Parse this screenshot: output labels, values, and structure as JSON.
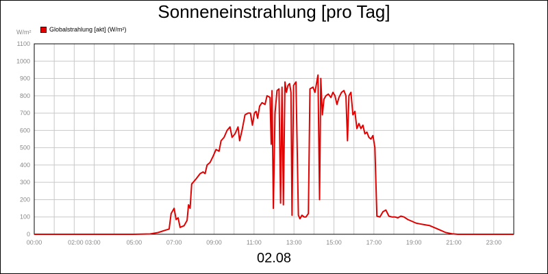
{
  "chart_data": {
    "type": "line",
    "title": "Sonneneinstrahlung [pro Tag]",
    "unit_label": "W/m²",
    "xlabel": "02.08",
    "ylim": [
      0,
      1100
    ],
    "yticks": [
      0,
      100,
      200,
      300,
      400,
      500,
      600,
      700,
      800,
      900,
      1000,
      1100
    ],
    "xlim": [
      0,
      24
    ],
    "xticks": [
      {
        "pos": 0,
        "label": "00:00"
      },
      {
        "pos": 2.5,
        "label": "02:00 03:00"
      },
      {
        "pos": 5,
        "label": "05:00"
      },
      {
        "pos": 7,
        "label": "07:00"
      },
      {
        "pos": 9,
        "label": "09:00"
      },
      {
        "pos": 11,
        "label": "11:00"
      },
      {
        "pos": 13,
        "label": "13:00"
      },
      {
        "pos": 15,
        "label": "15:00"
      },
      {
        "pos": 17,
        "label": "17:00"
      },
      {
        "pos": 19,
        "label": "19:00"
      },
      {
        "pos": 21,
        "label": "21:00"
      },
      {
        "pos": 23,
        "label": "23:00"
      }
    ],
    "grid": true,
    "legend_position": "top-left",
    "colors": {
      "series": "#e00000",
      "grid": "#c8c8c8",
      "tick_text": "#888888"
    },
    "series": [
      {
        "name": "Globalstrahlung [akt] (W/m²)",
        "points": [
          [
            0,
            0
          ],
          [
            5.0,
            0
          ],
          [
            5.8,
            2
          ],
          [
            6.2,
            10
          ],
          [
            6.6,
            25
          ],
          [
            6.75,
            30
          ],
          [
            6.85,
            120
          ],
          [
            7.0,
            150
          ],
          [
            7.1,
            85
          ],
          [
            7.2,
            95
          ],
          [
            7.3,
            40
          ],
          [
            7.5,
            50
          ],
          [
            7.65,
            80
          ],
          [
            7.72,
            170
          ],
          [
            7.8,
            150
          ],
          [
            7.88,
            290
          ],
          [
            8.1,
            320
          ],
          [
            8.3,
            350
          ],
          [
            8.45,
            360
          ],
          [
            8.55,
            350
          ],
          [
            8.65,
            400
          ],
          [
            8.8,
            415
          ],
          [
            8.95,
            450
          ],
          [
            9.1,
            490
          ],
          [
            9.25,
            480
          ],
          [
            9.35,
            540
          ],
          [
            9.5,
            560
          ],
          [
            9.65,
            600
          ],
          [
            9.8,
            620
          ],
          [
            9.9,
            560
          ],
          [
            10.05,
            580
          ],
          [
            10.2,
            620
          ],
          [
            10.28,
            540
          ],
          [
            10.4,
            600
          ],
          [
            10.55,
            690
          ],
          [
            10.7,
            700
          ],
          [
            10.82,
            700
          ],
          [
            10.92,
            630
          ],
          [
            11.02,
            700
          ],
          [
            11.1,
            710
          ],
          [
            11.18,
            670
          ],
          [
            11.28,
            740
          ],
          [
            11.4,
            760
          ],
          [
            11.55,
            750
          ],
          [
            11.65,
            800
          ],
          [
            11.8,
            790
          ],
          [
            11.86,
            520
          ],
          [
            11.9,
            830
          ],
          [
            11.97,
            150
          ],
          [
            12.05,
            700
          ],
          [
            12.15,
            830
          ],
          [
            12.25,
            840
          ],
          [
            12.33,
            180
          ],
          [
            12.4,
            850
          ],
          [
            12.47,
            170
          ],
          [
            12.55,
            880
          ],
          [
            12.62,
            820
          ],
          [
            12.7,
            860
          ],
          [
            12.78,
            870
          ],
          [
            12.85,
            820
          ],
          [
            12.9,
            110
          ],
          [
            12.98,
            860
          ],
          [
            13.1,
            880
          ],
          [
            13.22,
            110
          ],
          [
            13.3,
            90
          ],
          [
            13.4,
            110
          ],
          [
            13.5,
            100
          ],
          [
            13.6,
            100
          ],
          [
            13.72,
            120
          ],
          [
            13.8,
            840
          ],
          [
            13.95,
            850
          ],
          [
            14.05,
            820
          ],
          [
            14.2,
            920
          ],
          [
            14.28,
            200
          ],
          [
            14.34,
            900
          ],
          [
            14.42,
            690
          ],
          [
            14.5,
            780
          ],
          [
            14.6,
            800
          ],
          [
            14.72,
            810
          ],
          [
            14.85,
            790
          ],
          [
            14.95,
            820
          ],
          [
            15.05,
            800
          ],
          [
            15.15,
            750
          ],
          [
            15.25,
            790
          ],
          [
            15.38,
            820
          ],
          [
            15.5,
            830
          ],
          [
            15.6,
            800
          ],
          [
            15.68,
            540
          ],
          [
            15.75,
            800
          ],
          [
            15.85,
            820
          ],
          [
            15.95,
            690
          ],
          [
            16.05,
            710
          ],
          [
            16.15,
            610
          ],
          [
            16.25,
            640
          ],
          [
            16.35,
            610
          ],
          [
            16.45,
            630
          ],
          [
            16.55,
            580
          ],
          [
            16.65,
            590
          ],
          [
            16.75,
            560
          ],
          [
            16.85,
            550
          ],
          [
            16.95,
            570
          ],
          [
            17.05,
            500
          ],
          [
            17.15,
            105
          ],
          [
            17.3,
            100
          ],
          [
            17.45,
            130
          ],
          [
            17.6,
            140
          ],
          [
            17.75,
            105
          ],
          [
            17.9,
            100
          ],
          [
            18.05,
            100
          ],
          [
            18.2,
            95
          ],
          [
            18.35,
            105
          ],
          [
            18.5,
            100
          ],
          [
            18.7,
            85
          ],
          [
            18.9,
            75
          ],
          [
            19.1,
            65
          ],
          [
            19.3,
            60
          ],
          [
            19.55,
            55
          ],
          [
            19.8,
            50
          ],
          [
            20.0,
            40
          ],
          [
            20.3,
            25
          ],
          [
            20.6,
            10
          ],
          [
            20.9,
            3
          ],
          [
            21.2,
            0
          ],
          [
            24,
            0
          ]
        ]
      }
    ]
  }
}
